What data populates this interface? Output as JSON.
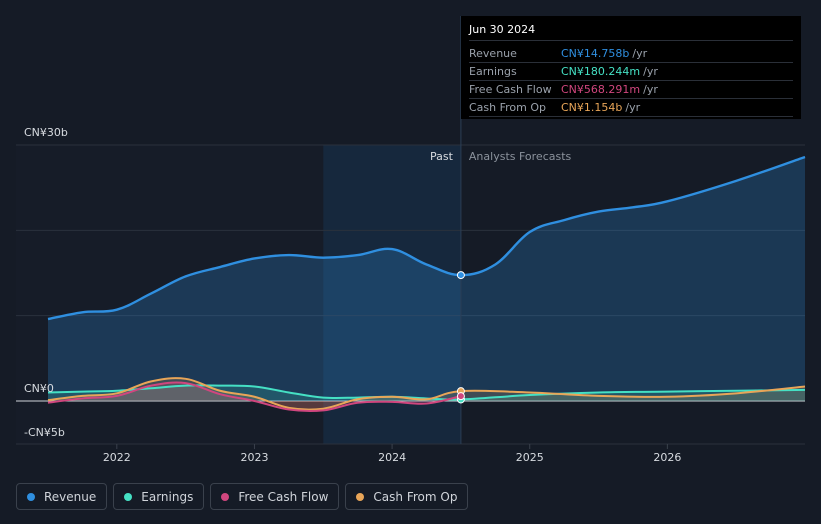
{
  "chart_data": {
    "type": "line",
    "currency_unit": "CN¥",
    "y_tick_labels": [
      "CN¥30b",
      "CN¥0",
      "-CN¥5b"
    ],
    "y_ticks": [
      30,
      0,
      -5
    ],
    "ylim": [
      -5,
      30
    ],
    "x_tick_labels": [
      "2022",
      "2023",
      "2024",
      "2025",
      "2026"
    ],
    "x_ticks": [
      2022,
      2023,
      2024,
      2025,
      2026
    ],
    "xlim": [
      2021.5,
      2027.0
    ],
    "past_label": "Past",
    "forecast_label": "Analysts Forecasts",
    "past_end": 2024.5,
    "highlight_start": 2023.5,
    "series": [
      {
        "name": "Revenue",
        "color": "#2f8fe0",
        "area": true,
        "x": [
          2021.5,
          2021.75,
          2022.0,
          2022.25,
          2022.5,
          2022.75,
          2023.0,
          2023.25,
          2023.5,
          2023.75,
          2024.0,
          2024.25,
          2024.5,
          2024.75,
          2025.0,
          2025.25,
          2025.5,
          2025.75,
          2026.0,
          2026.5,
          2027.0
        ],
        "y": [
          9.6,
          10.4,
          10.7,
          12.6,
          14.6,
          15.7,
          16.7,
          17.1,
          16.8,
          17.1,
          17.8,
          16.0,
          14.758,
          16.0,
          19.8,
          21.2,
          22.2,
          22.7,
          23.4,
          25.8,
          28.6
        ]
      },
      {
        "name": "Earnings",
        "color": "#45e0c4",
        "x": [
          2021.5,
          2021.75,
          2022.0,
          2022.25,
          2022.5,
          2022.75,
          2023.0,
          2023.25,
          2023.5,
          2023.75,
          2024.0,
          2024.25,
          2024.5,
          2025.0,
          2025.5,
          2026.0,
          2026.5,
          2027.0
        ],
        "y": [
          1.0,
          1.1,
          1.2,
          1.5,
          1.8,
          1.8,
          1.7,
          1.0,
          0.4,
          0.4,
          0.5,
          0.3,
          0.18,
          0.7,
          1.0,
          1.1,
          1.2,
          1.3
        ]
      },
      {
        "name": "Free Cash Flow",
        "color": "#d0467e",
        "x": [
          2021.5,
          2021.75,
          2022.0,
          2022.25,
          2022.5,
          2022.75,
          2023.0,
          2023.25,
          2023.5,
          2023.75,
          2024.0,
          2024.25,
          2024.5
        ],
        "y": [
          -0.2,
          0.3,
          0.6,
          1.8,
          2.1,
          0.8,
          0.0,
          -1.0,
          -1.1,
          -0.2,
          -0.1,
          -0.3,
          0.568
        ]
      },
      {
        "name": "Cash From Op",
        "color": "#e8a558",
        "x": [
          2021.5,
          2021.75,
          2022.0,
          2022.25,
          2022.5,
          2022.75,
          2023.0,
          2023.25,
          2023.5,
          2023.75,
          2024.0,
          2024.25,
          2024.5,
          2025.0,
          2025.5,
          2026.0,
          2026.5,
          2027.0
        ],
        "y": [
          0.1,
          0.6,
          0.9,
          2.3,
          2.6,
          1.2,
          0.5,
          -0.8,
          -0.9,
          0.2,
          0.5,
          0.2,
          1.154,
          1.0,
          0.6,
          0.5,
          0.9,
          1.7
        ]
      }
    ]
  },
  "tooltip": {
    "date": "Jun 30 2024",
    "unit": "/yr",
    "rows": [
      {
        "label": "Revenue",
        "value": "CN¥14.758b",
        "color": "#2f8fe0"
      },
      {
        "label": "Earnings",
        "value": "CN¥180.244m",
        "color": "#45e0c4"
      },
      {
        "label": "Free Cash Flow",
        "value": "CN¥568.291m",
        "color": "#d0467e"
      },
      {
        "label": "Cash From Op",
        "value": "CN¥1.154b",
        "color": "#e8a558"
      }
    ]
  },
  "legend": [
    {
      "label": "Revenue",
      "color": "#2f8fe0"
    },
    {
      "label": "Earnings",
      "color": "#45e0c4"
    },
    {
      "label": "Free Cash Flow",
      "color": "#d0467e"
    },
    {
      "label": "Cash From Op",
      "color": "#e8a558"
    }
  ]
}
